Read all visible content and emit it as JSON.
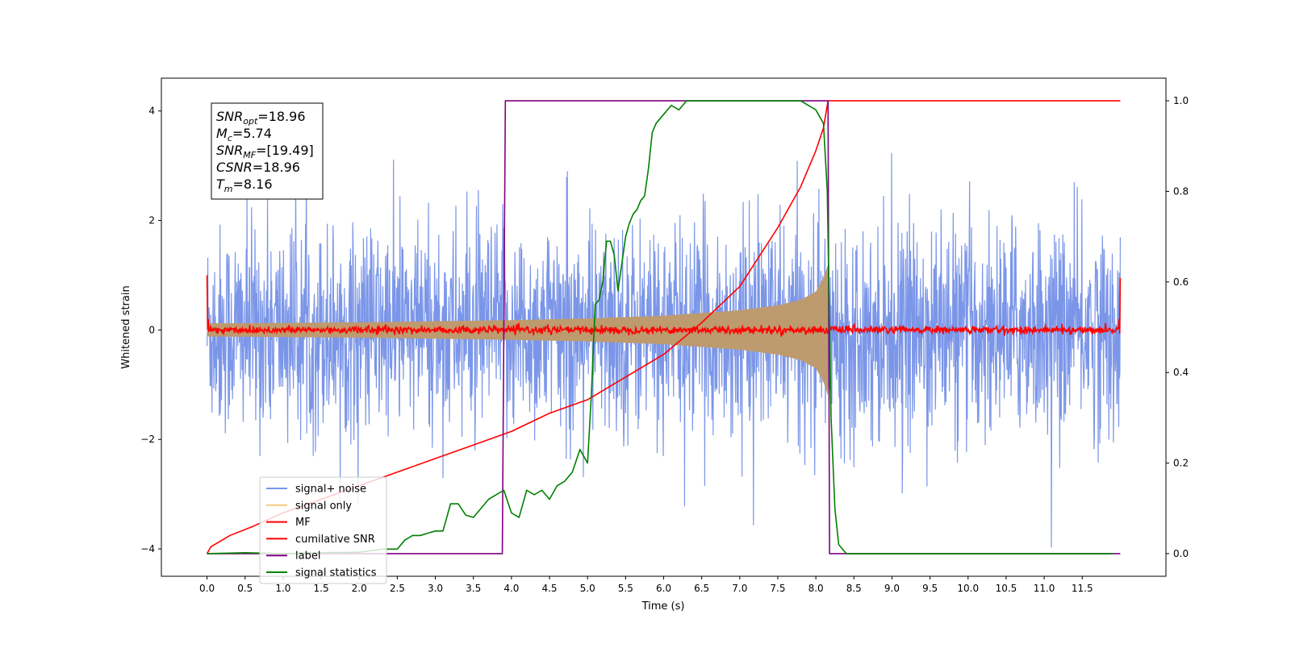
{
  "chart_data": {
    "type": "line",
    "xlabel": "Time (s)",
    "ylabel": "Whitened strain",
    "xlim": [
      -0.6,
      12.6
    ],
    "ylim": [
      -4.5,
      4.6
    ],
    "y2lim": [
      -0.05,
      1.05
    ],
    "xticks": [
      0.0,
      0.5,
      1.0,
      1.5,
      2.0,
      2.5,
      3.0,
      3.5,
      4.0,
      4.5,
      5.0,
      5.5,
      6.0,
      6.5,
      7.0,
      7.5,
      8.0,
      8.5,
      9.0,
      9.5,
      10.0,
      10.5,
      11.0,
      11.5
    ],
    "xtick_labels": [
      "0.0",
      "0.5",
      "1.0",
      "1.5",
      "2.0",
      "2.5",
      "3.0",
      "3.5",
      "4.0",
      "4.5",
      "5.0",
      "5.5",
      "6.0",
      "6.5",
      "7.0",
      "7.5",
      "8.0",
      "8.5",
      "9.0",
      "9.5",
      "10.0",
      "10.5",
      "11.0",
      "11.5"
    ],
    "yticks": [
      -4,
      -2,
      0,
      2,
      4
    ],
    "ytick_labels": [
      "−4",
      "−2",
      "0",
      "2",
      "4"
    ],
    "y2ticks": [
      0.0,
      0.2,
      0.4,
      0.6,
      0.8,
      1.0
    ],
    "y2tick_labels": [
      "0.0",
      "0.2",
      "0.4",
      "0.6",
      "0.8",
      "1.0"
    ],
    "grid": false,
    "legend_position": "lower-left",
    "annotation_lines": [
      {
        "base": "SNR",
        "sub": "opt",
        "rest": "=18.96"
      },
      {
        "base": "M",
        "sub": "c",
        "rest": "=5.74"
      },
      {
        "base": "SNR",
        "sub": "MF",
        "rest": "=[19.49]"
      },
      {
        "base": "CSNR",
        "sub": "",
        "rest": "=18.96"
      },
      {
        "base": "T",
        "sub": "m",
        "rest": "=8.16"
      }
    ],
    "series": [
      {
        "name": "signal+ noise",
        "axis": "left",
        "color": "#7b96e8",
        "kind": "noise",
        "x_range": [
          0.0,
          12.0
        ],
        "amplitude_band": [
          -1.6,
          1.7
        ],
        "spike_range": [
          -4.1,
          4.15
        ]
      },
      {
        "name": "signal only",
        "axis": "left",
        "color": "#f5c980",
        "fill_color": "#be9a6f",
        "kind": "chirp_envelope",
        "x": [
          0.0,
          1.0,
          2.0,
          3.0,
          4.0,
          5.0,
          6.0,
          7.0,
          7.5,
          7.8,
          8.0,
          8.1,
          8.16
        ],
        "envelope": [
          0.12,
          0.13,
          0.14,
          0.16,
          0.18,
          0.21,
          0.26,
          0.36,
          0.45,
          0.55,
          0.7,
          0.95,
          1.2
        ]
      },
      {
        "name": "MF",
        "axis": "left",
        "color": "#ff0000",
        "kind": "noise_small",
        "x_range": [
          0.0,
          12.0
        ],
        "amplitude_band": [
          -0.08,
          0.08
        ],
        "edge_values": [
          1.0,
          0.95
        ]
      },
      {
        "name": "cumilative SNR",
        "axis": "right",
        "color": "#ff0000",
        "x": [
          0.0,
          0.05,
          0.3,
          0.6,
          1.0,
          1.5,
          2.0,
          2.5,
          3.0,
          3.5,
          4.0,
          4.5,
          5.0,
          5.5,
          6.0,
          6.5,
          7.0,
          7.5,
          7.8,
          8.0,
          8.1,
          8.16,
          8.5,
          9.0,
          10.0,
          11.0,
          12.0
        ],
        "y": [
          0.0,
          0.015,
          0.04,
          0.06,
          0.09,
          0.12,
          0.15,
          0.18,
          0.21,
          0.24,
          0.27,
          0.31,
          0.34,
          0.39,
          0.44,
          0.51,
          0.59,
          0.72,
          0.81,
          0.89,
          0.94,
          1.0,
          1.0,
          1.0,
          1.0,
          1.0,
          1.0
        ]
      },
      {
        "name": "label",
        "axis": "right",
        "color": "#800080",
        "x": [
          0.0,
          3.88,
          3.92,
          8.16,
          8.18,
          12.0
        ],
        "y": [
          0.0,
          0.0,
          1.0,
          1.0,
          0.0,
          0.0
        ]
      },
      {
        "name": "signal statistics",
        "axis": "right",
        "color": "#008000",
        "x": [
          0.0,
          0.5,
          1.0,
          1.5,
          2.0,
          2.3,
          2.5,
          2.6,
          2.7,
          2.8,
          2.9,
          3.0,
          3.1,
          3.2,
          3.3,
          3.4,
          3.5,
          3.6,
          3.7,
          3.8,
          3.9,
          4.0,
          4.1,
          4.2,
          4.3,
          4.4,
          4.5,
          4.6,
          4.7,
          4.8,
          4.9,
          5.0,
          5.05,
          5.1,
          5.15,
          5.2,
          5.25,
          5.3,
          5.35,
          5.4,
          5.45,
          5.5,
          5.55,
          5.6,
          5.65,
          5.7,
          5.75,
          5.8,
          5.85,
          5.9,
          6.0,
          6.1,
          6.2,
          6.3,
          6.4,
          6.5,
          6.7,
          7.0,
          7.5,
          7.8,
          8.0,
          8.1,
          8.15,
          8.2,
          8.25,
          8.3,
          8.4,
          8.5,
          9.0,
          10.0,
          11.0,
          11.9
        ],
        "y": [
          0.0,
          0.002,
          0.0,
          0.002,
          0.003,
          0.01,
          0.01,
          0.03,
          0.04,
          0.04,
          0.045,
          0.05,
          0.05,
          0.11,
          0.11,
          0.085,
          0.08,
          0.1,
          0.12,
          0.13,
          0.14,
          0.09,
          0.08,
          0.14,
          0.13,
          0.14,
          0.12,
          0.15,
          0.16,
          0.18,
          0.23,
          0.2,
          0.35,
          0.55,
          0.56,
          0.6,
          0.69,
          0.69,
          0.66,
          0.58,
          0.64,
          0.7,
          0.73,
          0.75,
          0.76,
          0.78,
          0.79,
          0.85,
          0.93,
          0.95,
          0.97,
          0.99,
          0.98,
          1.0,
          1.0,
          1.0,
          1.0,
          1.0,
          1.0,
          1.0,
          0.98,
          0.95,
          0.8,
          0.3,
          0.1,
          0.02,
          0.0,
          0.0,
          0.0,
          0.0,
          0.0,
          0.0
        ]
      }
    ]
  }
}
